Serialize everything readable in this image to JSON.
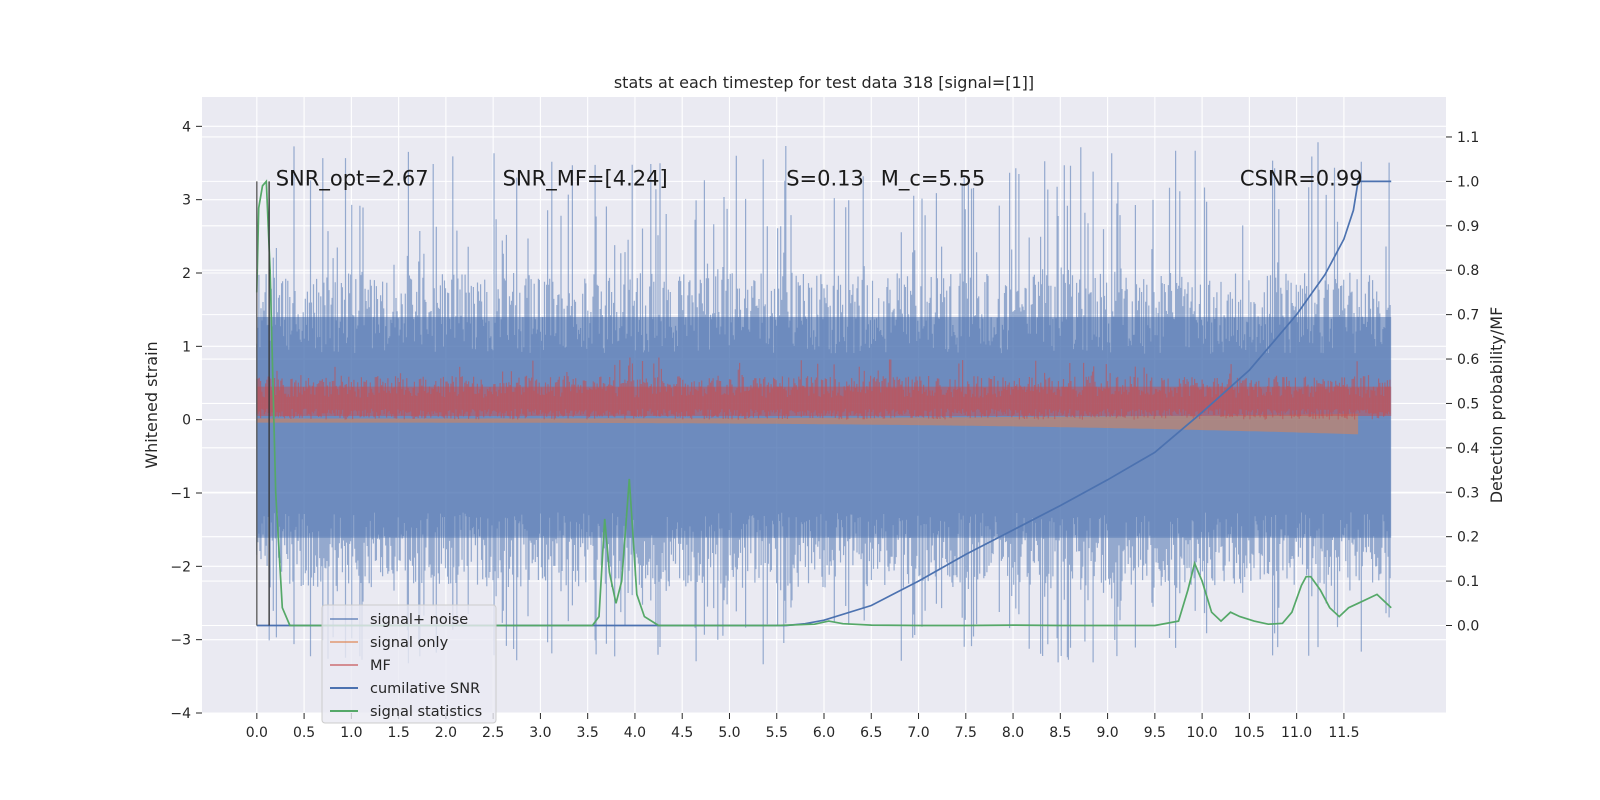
{
  "chart_data": {
    "type": "line",
    "title": "stats at each timestep for test data 318 [signal=[1]]",
    "ylabel_left": "Whitened strain",
    "ylabel_right": "Detection probability/MF",
    "xlim": [
      -0.58,
      12.58
    ],
    "ylim_left": [
      -4.0,
      4.4
    ],
    "ylim_right": [
      -0.197,
      1.19
    ],
    "x_ticks": [
      0.0,
      0.5,
      1.0,
      1.5,
      2.0,
      2.5,
      3.0,
      3.5,
      4.0,
      4.5,
      5.0,
      5.5,
      6.0,
      6.5,
      7.0,
      7.5,
      8.0,
      8.5,
      9.0,
      9.5,
      10.0,
      10.5,
      11.0,
      11.5
    ],
    "x_tick_labels": [
      "0.0",
      "0.5",
      "1.0",
      "1.5",
      "2.0",
      "2.5",
      "3.0",
      "3.5",
      "4.0",
      "4.5",
      "5.0",
      "5.5",
      "6.0",
      "6.5",
      "7.0",
      "7.5",
      "8.0",
      "8.5",
      "9.0",
      "9.5",
      "10.0",
      "10.5",
      "11.0",
      "11.5"
    ],
    "y_ticks_left": [
      4,
      3,
      2,
      1,
      0,
      -1,
      -2,
      -3,
      -4
    ],
    "y_tick_labels_left": [
      "4",
      "3",
      "2",
      "1",
      "0",
      "−1",
      "−2",
      "−3",
      "−4"
    ],
    "y_ticks_right": [
      1.1,
      1.0,
      0.9,
      0.8,
      0.7,
      0.6,
      0.5,
      0.4,
      0.3,
      0.2,
      0.1,
      0.0
    ],
    "y_tick_labels_right": [
      "1.1",
      "1.0",
      "0.9",
      "0.8",
      "0.7",
      "0.6",
      "0.5",
      "0.4",
      "0.3",
      "0.2",
      "0.1",
      "0.0"
    ],
    "grid": true,
    "legend_position": "lower-left",
    "annotations": [
      {
        "text": "SNR_opt=2.67",
        "x": 0.2,
        "y": 3.3
      },
      {
        "text": "SNR_MF=[4.24]",
        "x": 2.6,
        "y": 3.3
      },
      {
        "text": "S=0.13",
        "x": 5.6,
        "y": 3.3
      },
      {
        "text": "M_c=5.55",
        "x": 6.6,
        "y": 3.3
      },
      {
        "text": "CSNR=0.99",
        "x": 10.4,
        "y": 3.3
      }
    ],
    "series": [
      {
        "name": "signal+ noise",
        "axis": "left",
        "kind": "noise-band",
        "color": "#4c72b0",
        "x_range": [
          0.0,
          12.0
        ],
        "core_range": [
          -2.3,
          2.0
        ],
        "spike_range": [
          -3.6,
          4.1
        ]
      },
      {
        "name": "signal only",
        "axis": "left",
        "kind": "chirp",
        "color": "#dd8452",
        "x_range": [
          0.0,
          11.65
        ],
        "amplitude_start": 0.04,
        "amplitude_end": 0.2
      },
      {
        "name": "MF",
        "axis": "left",
        "kind": "mf-band",
        "color": "#c44e52",
        "x_range": [
          0.0,
          12.0
        ],
        "range": [
          0.0,
          0.85
        ]
      },
      {
        "name": "cumilative SNR",
        "axis": "right",
        "color": "#4c72b0",
        "x": [
          0.0,
          5.6,
          5.8,
          6.0,
          6.5,
          7.0,
          7.5,
          8.0,
          8.5,
          9.0,
          9.5,
          10.0,
          10.5,
          11.0,
          11.3,
          11.5,
          11.6,
          11.65,
          12.0
        ],
        "values": [
          0.0,
          0.0,
          0.004,
          0.012,
          0.045,
          0.1,
          0.16,
          0.215,
          0.27,
          0.328,
          0.39,
          0.48,
          0.575,
          0.7,
          0.79,
          0.87,
          0.935,
          1.0,
          1.0
        ]
      },
      {
        "name": "signal statistics",
        "axis": "right",
        "color": "#55a868",
        "x": [
          0.0,
          0.02,
          0.06,
          0.1,
          0.14,
          0.2,
          0.27,
          0.35,
          0.5,
          1.0,
          2.0,
          3.0,
          3.55,
          3.62,
          3.68,
          3.73,
          3.8,
          3.86,
          3.94,
          4.02,
          4.1,
          4.25,
          4.5,
          5.0,
          5.5,
          5.9,
          6.05,
          6.2,
          6.5,
          7.0,
          7.5,
          8.0,
          8.5,
          9.0,
          9.5,
          9.75,
          9.85,
          9.92,
          10.0,
          10.1,
          10.2,
          10.3,
          10.4,
          10.55,
          10.7,
          10.85,
          10.95,
          11.05,
          11.1,
          11.15,
          11.25,
          11.35,
          11.45,
          11.55,
          11.65,
          11.75,
          11.85,
          11.95,
          12.0
        ],
        "values": [
          0.75,
          0.94,
          0.99,
          1.0,
          0.8,
          0.3,
          0.04,
          0.0,
          0.0,
          0.0,
          0.0,
          0.0,
          0.0,
          0.02,
          0.24,
          0.12,
          0.05,
          0.1,
          0.33,
          0.07,
          0.02,
          0.0,
          0.0,
          0.0,
          0.0,
          0.003,
          0.01,
          0.004,
          0.001,
          0.0,
          0.0,
          0.001,
          0.0,
          0.0,
          0.0,
          0.01,
          0.08,
          0.14,
          0.1,
          0.03,
          0.01,
          0.03,
          0.02,
          0.01,
          0.003,
          0.005,
          0.03,
          0.09,
          0.11,
          0.11,
          0.08,
          0.04,
          0.02,
          0.04,
          0.05,
          0.06,
          0.07,
          0.05,
          0.04
        ]
      }
    ]
  }
}
